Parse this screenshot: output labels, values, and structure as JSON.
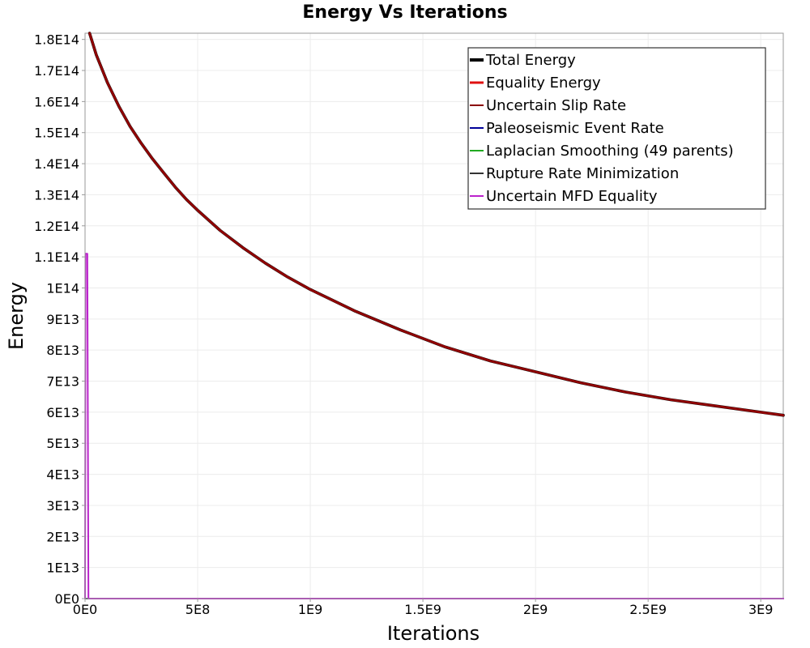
{
  "chart_data": {
    "type": "line",
    "title": "Energy Vs Iterations",
    "xlabel": "Iterations",
    "ylabel": "Energy",
    "xlim": [
      0,
      3100000000
    ],
    "ylim": [
      0,
      182000000000000
    ],
    "grid": true,
    "legend_position": "top-right",
    "x_ticks": [
      {
        "value": 0,
        "label": "0E0"
      },
      {
        "value": 500000000,
        "label": "5E8"
      },
      {
        "value": 1000000000,
        "label": "1E9"
      },
      {
        "value": 1500000000,
        "label": "1.5E9"
      },
      {
        "value": 2000000000,
        "label": "2E9"
      },
      {
        "value": 2500000000,
        "label": "2.5E9"
      },
      {
        "value": 3000000000,
        "label": "3E9"
      }
    ],
    "y_ticks": [
      {
        "value": 0,
        "label": "0E0"
      },
      {
        "value": 10000000000000,
        "label": "1E13"
      },
      {
        "value": 20000000000000,
        "label": "2E13"
      },
      {
        "value": 30000000000000,
        "label": "3E13"
      },
      {
        "value": 40000000000000,
        "label": "4E13"
      },
      {
        "value": 50000000000000,
        "label": "5E13"
      },
      {
        "value": 60000000000000,
        "label": "6E13"
      },
      {
        "value": 70000000000000,
        "label": "7E13"
      },
      {
        "value": 80000000000000,
        "label": "8E13"
      },
      {
        "value": 90000000000000,
        "label": "9E13"
      },
      {
        "value": 100000000000000,
        "label": "1E14"
      },
      {
        "value": 110000000000000,
        "label": "1.1E14"
      },
      {
        "value": 120000000000000,
        "label": "1.2E14"
      },
      {
        "value": 130000000000000,
        "label": "1.3E14"
      },
      {
        "value": 140000000000000,
        "label": "1.4E14"
      },
      {
        "value": 150000000000000,
        "label": "1.5E14"
      },
      {
        "value": 160000000000000,
        "label": "1.6E14"
      },
      {
        "value": 170000000000000,
        "label": "1.7E14"
      },
      {
        "value": 180000000000000,
        "label": "1.8E14"
      }
    ],
    "series": [
      {
        "name": "Total Energy",
        "color": "#000000",
        "legend_width": 4,
        "line_width": 3.6,
        "x": [
          20000000,
          50000000,
          100000000,
          150000000,
          200000000,
          250000000,
          300000000,
          350000000,
          400000000,
          450000000,
          500000000,
          600000000,
          700000000,
          800000000,
          900000000,
          1000000000,
          1200000000,
          1400000000,
          1600000000,
          1800000000,
          2000000000,
          2200000000,
          2400000000,
          2600000000,
          2800000000,
          3000000000,
          3100000000
        ],
        "values": [
          182000000000000,
          175000000000000,
          166000000000000,
          158500000000000,
          152000000000000,
          146500000000000,
          141500000000000,
          137000000000000,
          132500000000000,
          128500000000000,
          125000000000000,
          118500000000000,
          113000000000000,
          108000000000000,
          103500000000000,
          99500000000000,
          92500000000000,
          86500000000000,
          81000000000000,
          76500000000000,
          73000000000000,
          69500000000000,
          66500000000000,
          64000000000000,
          62000000000000,
          60000000000000,
          59000000000000
        ]
      },
      {
        "name": "Equality Energy",
        "color": "#e01010",
        "legend_width": 3,
        "line_width": 2.6,
        "x": [
          20000000,
          50000000,
          100000000,
          150000000,
          200000000,
          250000000,
          300000000,
          350000000,
          400000000,
          450000000,
          500000000,
          600000000,
          700000000,
          800000000,
          900000000,
          1000000000,
          1200000000,
          1400000000,
          1600000000,
          1800000000,
          2000000000,
          2200000000,
          2400000000,
          2600000000,
          2800000000,
          3000000000,
          3100000000
        ],
        "values": [
          182000000000000,
          175000000000000,
          166000000000000,
          158500000000000,
          152000000000000,
          146500000000000,
          141500000000000,
          137000000000000,
          132500000000000,
          128500000000000,
          125000000000000,
          118500000000000,
          113000000000000,
          108000000000000,
          103500000000000,
          99500000000000,
          92500000000000,
          86500000000000,
          81000000000000,
          76500000000000,
          73000000000000,
          69500000000000,
          66500000000000,
          64000000000000,
          62000000000000,
          60000000000000,
          59000000000000
        ]
      },
      {
        "name": "Uncertain Slip Rate",
        "color": "#8b0000",
        "legend_width": 2,
        "line_width": 2,
        "x": [
          20000000,
          50000000,
          100000000,
          150000000,
          200000000,
          250000000,
          300000000,
          350000000,
          400000000,
          450000000,
          500000000,
          600000000,
          700000000,
          800000000,
          900000000,
          1000000000,
          1200000000,
          1400000000,
          1600000000,
          1800000000,
          2000000000,
          2200000000,
          2400000000,
          2600000000,
          2800000000,
          3000000000,
          3100000000
        ],
        "values": [
          182000000000000,
          175000000000000,
          166000000000000,
          158500000000000,
          152000000000000,
          146500000000000,
          141500000000000,
          137000000000000,
          132500000000000,
          128500000000000,
          125000000000000,
          118500000000000,
          113000000000000,
          108000000000000,
          103500000000000,
          99500000000000,
          92500000000000,
          86500000000000,
          81000000000000,
          76500000000000,
          73000000000000,
          69500000000000,
          66500000000000,
          64000000000000,
          62000000000000,
          60000000000000,
          59000000000000
        ]
      },
      {
        "name": "Paleoseismic Event Rate",
        "color": "#000099",
        "legend_width": 2,
        "line_width": 1.5,
        "x": [
          0,
          3100000000
        ],
        "values": [
          0,
          0
        ]
      },
      {
        "name": "Laplacian Smoothing (49 parents)",
        "color": "#22aa22",
        "legend_width": 2,
        "line_width": 1.5,
        "x": [
          0,
          3100000000
        ],
        "values": [
          0,
          0
        ]
      },
      {
        "name": "Rupture Rate Minimization",
        "color": "#333333",
        "legend_width": 2,
        "line_width": 1.5,
        "x": [
          0,
          3100000000
        ],
        "values": [
          0,
          0
        ]
      },
      {
        "name": "Uncertain MFD Equality",
        "color": "#bb22cc",
        "legend_width": 2,
        "line_width": 2,
        "x": [
          0,
          2000000,
          10000000,
          15000000,
          3100000000
        ],
        "values": [
          0,
          111000000000000,
          111000000000000,
          0,
          0
        ]
      }
    ]
  }
}
